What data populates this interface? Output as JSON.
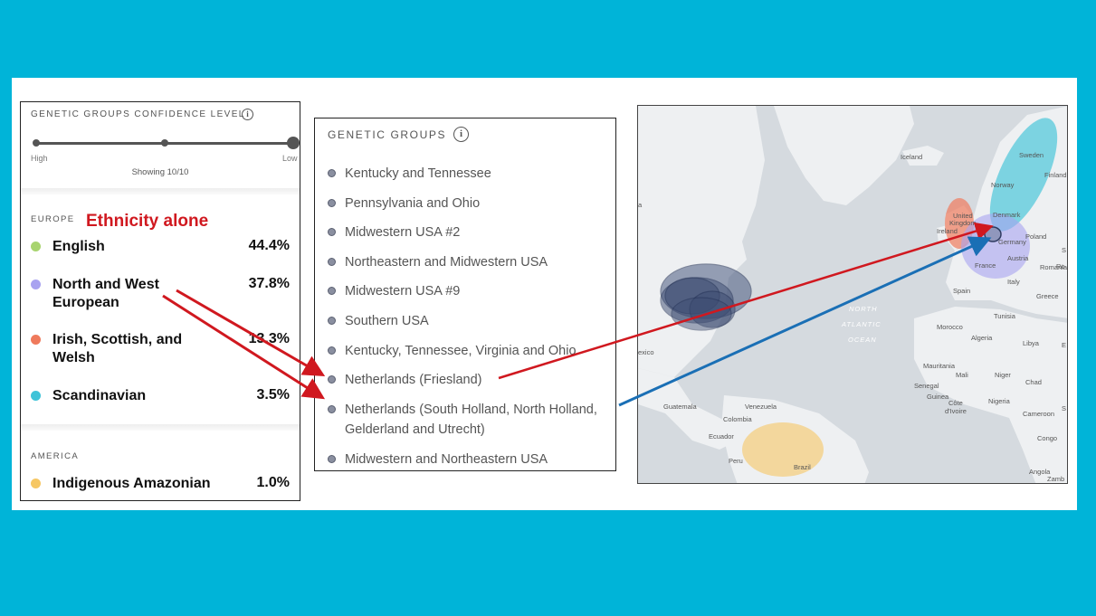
{
  "colors": {
    "background": "#00b4d8",
    "annotation_red": "#d0181f",
    "annotation_blue": "#1a6fb5"
  },
  "ethnicity_panel": {
    "confidence_title": "GENETIC GROUPS CONFIDENCE LEVEL",
    "slider_high": "High",
    "slider_low": "Low",
    "showing": "Showing 10/10",
    "europe_label": "EUROPE",
    "annotation": "Ethnicity alone",
    "america_label": "AMERICA",
    "europe_items": [
      {
        "name": "English",
        "pct": "44.4%",
        "color": "#a8d46f"
      },
      {
        "name": "North and West European",
        "pct": "37.8%",
        "color": "#a9a3f0"
      },
      {
        "name": "Irish, Scottish, and Welsh",
        "pct": "13.3%",
        "color": "#ef7a5c"
      },
      {
        "name": "Scandinavian",
        "pct": "3.5%",
        "color": "#3fc3d8"
      }
    ],
    "america_items": [
      {
        "name": "Indigenous Amazonian",
        "pct": "1.0%",
        "color": "#f6c764"
      }
    ]
  },
  "genetic_groups": {
    "title": "GENETIC GROUPS",
    "items": [
      "Kentucky and Tennessee",
      "Pennsylvania and Ohio",
      "Midwestern USA #2",
      "Northeastern and Midwestern USA",
      "Midwestern USA #9",
      "Southern USA",
      "Kentucky, Tennessee, Virginia and Ohio",
      "Netherlands (Friesland)",
      "Netherlands (South Holland, North Holland,",
      "Gelderland and Utrecht)",
      "Midwestern and Northeastern USA"
    ]
  },
  "map": {
    "labels": [
      "Iceland",
      "Sweden",
      "Finland",
      "Norway",
      "Denmark",
      "United",
      "Kingdom",
      "Ireland",
      "Germany",
      "Poland",
      "France",
      "Austria",
      "Romania",
      "Spain",
      "Italy",
      "Greece",
      "Tunisia",
      "Morocco",
      "Algeria",
      "Libya",
      "Mauritania",
      "Mali",
      "Niger",
      "Chad",
      "Senegal",
      "Guinea",
      "Côte",
      "d'Ivoire",
      "Nigeria",
      "Cameroon",
      "Congo",
      "Angola",
      "Zamb",
      "Venezuela",
      "Colombia",
      "Ecuador",
      "Peru",
      "Brazil",
      "Guatemala",
      "exico",
      "S",
      "E",
      "a",
      "Ro",
      "S"
    ],
    "ocean": [
      "NORTH",
      "ATLANTIC",
      "OCEAN"
    ]
  }
}
